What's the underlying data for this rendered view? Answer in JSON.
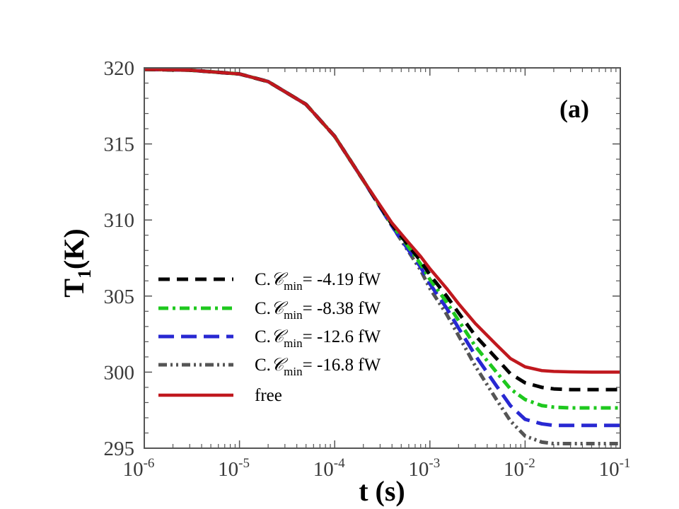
{
  "chart_data": {
    "type": "line",
    "panel_label": "(a)",
    "xlabel": {
      "main": "t",
      "unit": "(s)"
    },
    "ylabel": {
      "main": "T",
      "sub": "1",
      "unit": "(K)"
    },
    "xscale": "log",
    "xlim": [
      1e-06,
      0.1
    ],
    "ylim": [
      295,
      320
    ],
    "x_ticks": [
      {
        "value": 1e-06,
        "base": "10",
        "exp": "-6"
      },
      {
        "value": 1e-05,
        "base": "10",
        "exp": "-5"
      },
      {
        "value": 0.0001,
        "base": "10",
        "exp": "-4"
      },
      {
        "value": 0.001,
        "base": "10",
        "exp": "-3"
      },
      {
        "value": 0.01,
        "base": "10",
        "exp": "-2"
      },
      {
        "value": 0.1,
        "base": "10",
        "exp": "-1"
      }
    ],
    "y_ticks": [
      {
        "value": 295,
        "label": "295"
      },
      {
        "value": 300,
        "label": "300"
      },
      {
        "value": 305,
        "label": "305"
      },
      {
        "value": 310,
        "label": "310"
      },
      {
        "value": 315,
        "label": "315"
      },
      {
        "value": 320,
        "label": "320"
      }
    ],
    "x": [
      1e-06,
      3e-06,
      1e-05,
      2e-05,
      5e-05,
      0.0001,
      0.0002,
      0.0004,
      0.0006,
      0.0008,
      0.001,
      0.0015,
      0.002,
      0.003,
      0.005,
      0.007,
      0.01,
      0.015,
      0.02,
      0.03,
      0.05,
      0.1
    ],
    "series": [
      {
        "name": "free",
        "legend": {
          "text": "free"
        },
        "color": "#c0181e",
        "dash": "solid",
        "values": [
          319.9,
          319.85,
          319.6,
          319.1,
          317.6,
          315.5,
          312.6,
          309.8,
          308.5,
          307.6,
          306.8,
          305.5,
          304.5,
          303.2,
          301.8,
          300.9,
          300.35,
          300.1,
          300.05,
          300.02,
          300.0,
          300.0
        ]
      },
      {
        "name": "C.Cmin = -4.19 fW",
        "legend": {
          "prefix": "C.",
          "script": "𝒞",
          "sub": "min",
          "text": "= -4.19  fW"
        },
        "color": "#000000",
        "dash": "dash",
        "values": [
          319.9,
          319.85,
          319.6,
          319.1,
          317.6,
          315.5,
          312.6,
          309.7,
          308.3,
          307.3,
          306.4,
          305.0,
          303.9,
          302.4,
          300.9,
          299.9,
          299.3,
          299.0,
          298.9,
          298.85,
          298.85,
          298.85
        ]
      },
      {
        "name": "C.Cmin = -8.38 fW",
        "legend": {
          "prefix": "C.",
          "script": "𝒞",
          "sub": "min",
          "text": "= -8.38  fW"
        },
        "color": "#1ec81e",
        "dash": "dashdot",
        "values": [
          319.9,
          319.85,
          319.6,
          319.1,
          317.6,
          315.5,
          312.6,
          309.7,
          308.2,
          307.1,
          306.1,
          304.6,
          303.4,
          301.7,
          300.0,
          298.9,
          298.2,
          297.8,
          297.7,
          297.65,
          297.65,
          297.65
        ]
      },
      {
        "name": "C.Cmin = -12.6 fW",
        "legend": {
          "prefix": "C.",
          "script": "𝒞",
          "sub": "min",
          "text": "= -12.6  fW"
        },
        "color": "#2828d2",
        "dash": "longdash",
        "values": [
          319.9,
          319.85,
          319.6,
          319.1,
          317.6,
          315.5,
          312.6,
          309.6,
          308.0,
          306.9,
          305.8,
          304.2,
          302.9,
          301.1,
          299.1,
          297.8,
          296.9,
          296.6,
          296.5,
          296.5,
          296.5,
          296.5
        ]
      },
      {
        "name": "C.Cmin = -16.8 fW",
        "legend": {
          "prefix": "C.",
          "script": "𝒞",
          "sub": "min",
          "text": "= -16.8  fW"
        },
        "color": "#555555",
        "dash": "dashdotdot",
        "values": [
          319.9,
          319.85,
          319.6,
          319.1,
          317.6,
          315.5,
          312.6,
          309.6,
          307.9,
          306.7,
          305.5,
          303.8,
          302.4,
          300.4,
          298.2,
          296.8,
          295.8,
          295.4,
          295.3,
          295.3,
          295.3,
          295.3
        ]
      }
    ],
    "legend_order": [
      1,
      2,
      3,
      4,
      0
    ]
  }
}
